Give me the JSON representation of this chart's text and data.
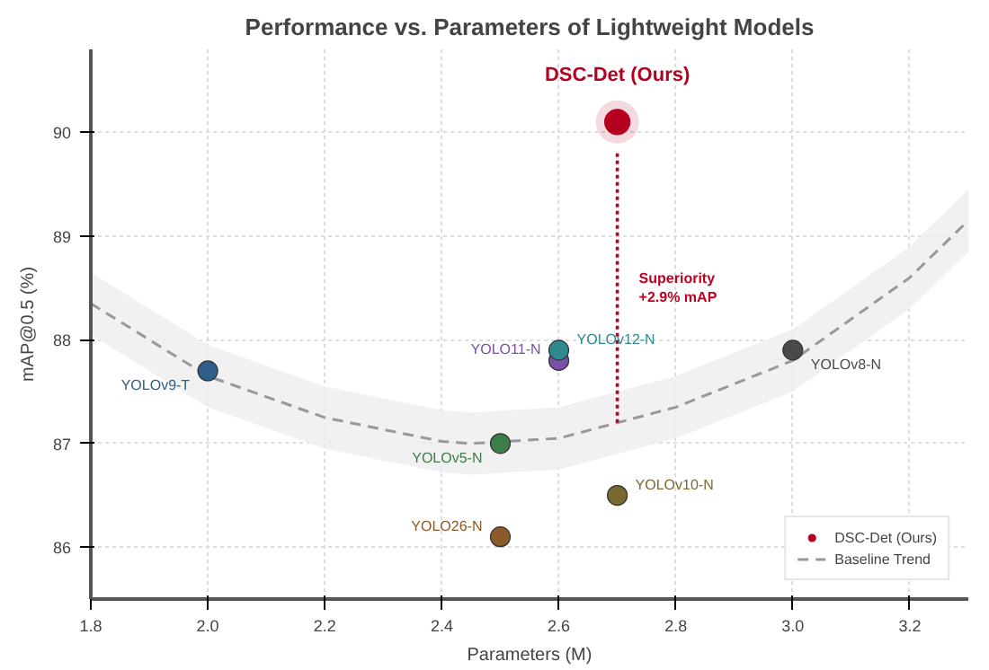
{
  "chart_data": {
    "type": "scatter",
    "title": "Performance vs. Parameters of Lightweight Models",
    "xlabel": "Parameters (M)",
    "ylabel": "mAP@0.5 (%)",
    "xlim": [
      1.8,
      3.3
    ],
    "ylim": [
      85.5,
      90.8
    ],
    "xticks": [
      {
        "value": 1.8,
        "label": "1.8"
      },
      {
        "value": 2.0,
        "label": "2.0"
      },
      {
        "value": 2.2,
        "label": "2.2"
      },
      {
        "value": 2.4,
        "label": "2.4"
      },
      {
        "value": 2.6,
        "label": "2.6"
      },
      {
        "value": 2.8,
        "label": "2.8"
      },
      {
        "value": 3.0,
        "label": "3.0"
      },
      {
        "value": 3.2,
        "label": "3.2"
      }
    ],
    "yticks": [
      86,
      87,
      88,
      89,
      90
    ],
    "grid": true,
    "legend": "bottom right",
    "series": [
      {
        "name": "DSC-Det (Ours)",
        "marker": "circle",
        "color": "#b5001f",
        "x": [
          2.7
        ],
        "values": [
          90.1
        ]
      },
      {
        "type": "line",
        "name": "Baseline Trend",
        "color": "#999999",
        "line_style": "dashed",
        "x": [
          1.8,
          2.0,
          2.2,
          2.4,
          2.45,
          2.6,
          2.8,
          3.0,
          3.2,
          3.3
        ],
        "values": [
          88.35,
          87.65,
          87.25,
          87.02,
          87.0,
          87.05,
          87.35,
          87.8,
          88.6,
          89.15
        ],
        "lower": [
          88.05,
          87.35,
          86.95,
          86.72,
          86.7,
          86.75,
          87.05,
          87.5,
          88.3,
          88.85
        ],
        "upper": [
          88.65,
          87.95,
          87.55,
          87.32,
          87.3,
          87.35,
          87.65,
          88.1,
          88.9,
          89.45
        ]
      },
      {
        "type": "line",
        "color": "#c0001f",
        "line_style": "dotted",
        "x": [
          2.7,
          2.7
        ],
        "values": [
          87.2,
          89.8
        ]
      },
      {
        "marker": "circle",
        "x": [
          2.0,
          2.6,
          2.6,
          2.5,
          2.7,
          2.5,
          3.0
        ],
        "values": [
          87.7,
          87.8,
          87.9,
          87.0,
          86.5,
          86.1,
          87.9
        ],
        "colors": [
          "#2e5f8a",
          "#7a4fa8",
          "#2f8a8f",
          "#3c7d4a",
          "#7a6a30",
          "#8a5a28",
          "#4a4a4a"
        ]
      }
    ],
    "annotations": [
      {
        "text": "YOLOv9-T",
        "x": 2.0,
        "y": 87.7
      },
      {
        "text": "YOLO11-N",
        "x": 2.6,
        "y": 87.8
      },
      {
        "text": "YOLOv12-N",
        "x": 2.6,
        "y": 87.9
      },
      {
        "text": "YOLOv5-N",
        "x": 2.5,
        "y": 87.0
      },
      {
        "text": "YOLOv10-N",
        "x": 2.7,
        "y": 86.5
      },
      {
        "text": "YOLO26-N",
        "x": 2.5,
        "y": 86.1
      },
      {
        "text": "YOLOv8-N",
        "x": 3.0,
        "y": 87.9
      },
      {
        "text": "Superiority\n+2.9% mAP",
        "x": 2.7,
        "y": 88.5
      }
    ]
  }
}
